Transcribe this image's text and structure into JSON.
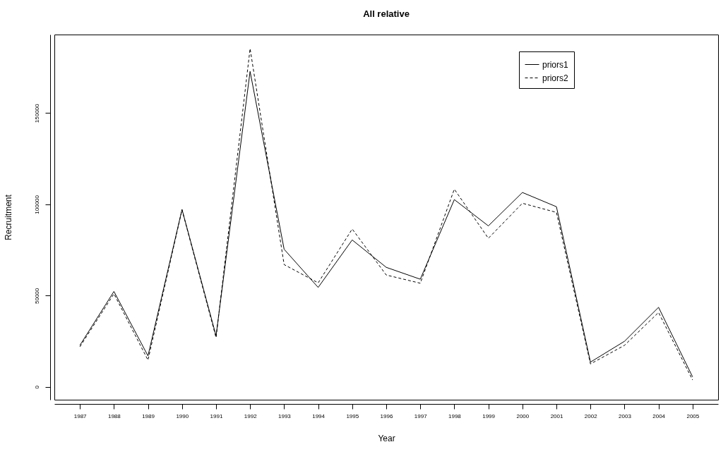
{
  "chart_data": {
    "type": "line",
    "title": "All relative",
    "xlabel": "Year",
    "ylabel": "Recruitment",
    "categories": [
      "1987",
      "1988",
      "1989",
      "1990",
      "1991",
      "1992",
      "1993",
      "1994",
      "1995",
      "1996",
      "1997",
      "1998",
      "1999",
      "2000",
      "2001",
      "2002",
      "2003",
      "2004",
      "2005"
    ],
    "series": [
      {
        "name": "priors1",
        "color": "#000000",
        "line_style": "solid",
        "values": [
          22800,
          52300,
          17000,
          97200,
          28000,
          172800,
          75400,
          54500,
          80500,
          65500,
          59000,
          102600,
          88200,
          106500,
          98700,
          13600,
          25000,
          43600,
          5500
        ]
      },
      {
        "name": "priors2",
        "color": "#000000",
        "line_style": "dashed",
        "values": [
          22000,
          51000,
          14700,
          97000,
          27000,
          185300,
          67000,
          57000,
          86500,
          61300,
          56800,
          108300,
          81400,
          100600,
          95600,
          12600,
          22800,
          40800,
          3800
        ]
      }
    ],
    "ylim": [
      -7000,
      193000
    ],
    "yticks": [
      0,
      50000,
      100000,
      150000
    ],
    "grid": false,
    "legend": "top right"
  }
}
